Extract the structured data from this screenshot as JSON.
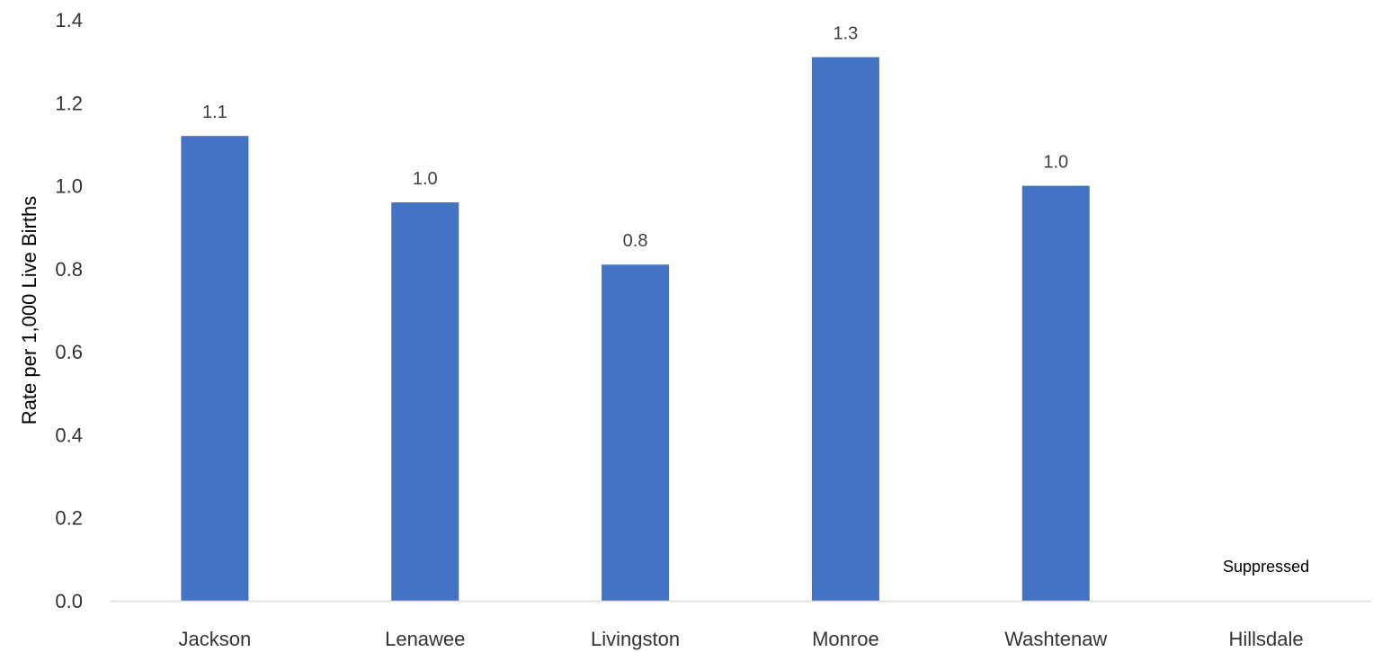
{
  "chart_data": {
    "type": "bar",
    "categories": [
      "Jackson",
      "Lenawee",
      "Livingston",
      "Monroe",
      "Washtenaw",
      "Hillsdale"
    ],
    "values": [
      1.12,
      0.96,
      0.81,
      1.31,
      1.0,
      null
    ],
    "data_labels": [
      "1.1",
      "1.0",
      "0.8",
      "1.3",
      "1.0",
      "Suppressed"
    ],
    "ylabel": "Rate per 1,000 Live Births",
    "ylim": [
      0,
      1.4
    ],
    "yticks": [
      "0.0",
      "0.2",
      "0.4",
      "0.6",
      "0.8",
      "1.0",
      "1.2",
      "1.4"
    ],
    "grid": false,
    "bar_color": "#4472C4",
    "axis_color": "#D9D9D9"
  }
}
